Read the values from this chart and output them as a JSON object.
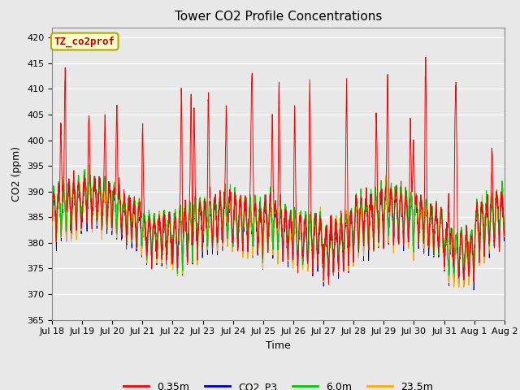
{
  "title": "Tower CO2 Profile Concentrations",
  "xlabel": "Time",
  "ylabel": "CO2 (ppm)",
  "ylim": [
    365,
    422
  ],
  "yticks": [
    365,
    370,
    375,
    380,
    385,
    390,
    395,
    400,
    405,
    410,
    415,
    420
  ],
  "plot_bg_color": "#e8e8e8",
  "legend_labels": [
    "0.35m",
    "CO2_P3",
    "6.0m",
    "23.5m"
  ],
  "legend_colors": [
    "#ff0000",
    "#0000bb",
    "#00cc00",
    "#ffaa00"
  ],
  "annotation_text": "TZ_co2prof",
  "annotation_bg": "#ffffcc",
  "annotation_border": "#aaaa00",
  "annotation_color": "#cc0000",
  "num_days": 15,
  "points_per_day": 144,
  "base_co2": 378,
  "title_fontsize": 11,
  "axis_label_fontsize": 9,
  "tick_fontsize": 8,
  "legend_fontsize": 9
}
